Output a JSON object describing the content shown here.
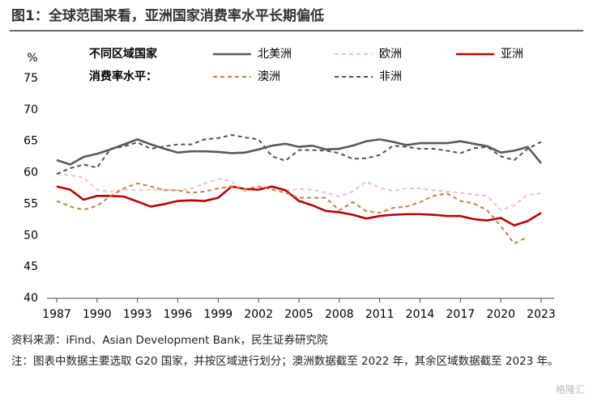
{
  "chart_data": {
    "type": "line",
    "title": "图1：全球范围来看，亚洲国家消费率水平长期偏低",
    "y_unit": "%",
    "legend_title": [
      "不同区域国家",
      "消费率水平："
    ],
    "x": [
      1987,
      1988,
      1989,
      1990,
      1991,
      1992,
      1993,
      1994,
      1995,
      1996,
      1997,
      1998,
      1999,
      2000,
      2001,
      2002,
      2003,
      2004,
      2005,
      2006,
      2007,
      2008,
      2009,
      2010,
      2011,
      2012,
      2013,
      2014,
      2015,
      2016,
      2017,
      2018,
      2019,
      2020,
      2021,
      2022,
      2023
    ],
    "xlim": [
      1987,
      2023
    ],
    "xticks": [
      1987,
      1990,
      1993,
      1996,
      1999,
      2002,
      2005,
      2008,
      2011,
      2014,
      2017,
      2020,
      2023
    ],
    "ylim": [
      40,
      75
    ],
    "yticks": [
      40,
      45,
      50,
      55,
      60,
      65,
      70,
      75
    ],
    "series": [
      {
        "name": "北美洲",
        "color": "#595959",
        "dashed": false,
        "values": [
          62,
          61.3,
          62.5,
          63,
          63.7,
          64.5,
          65.3,
          64.5,
          63.8,
          63.2,
          63.4,
          63.4,
          63.3,
          63.1,
          63.2,
          63.7,
          64.3,
          64.6,
          64.1,
          64.3,
          63.7,
          63.8,
          64.3,
          65,
          65.3,
          64.9,
          64.4,
          64.7,
          64.7,
          64.7,
          65,
          64.6,
          64.2,
          63.2,
          63.5,
          64.1,
          61.5
        ]
      },
      {
        "name": "欧洲",
        "color": "#f4c0c0",
        "dashed": true,
        "values": [
          59.8,
          59.6,
          59.2,
          57.3,
          57,
          57.3,
          57.2,
          57.3,
          57.3,
          57.2,
          57.5,
          58.3,
          59,
          58.6,
          57,
          57.8,
          57.5,
          57.2,
          57.4,
          57.3,
          56.8,
          56.2,
          57,
          58.6,
          57.6,
          57.1,
          57.5,
          57.5,
          57.2,
          57,
          56.8,
          56.5,
          56.3,
          54,
          54.8,
          56.5,
          56.7
        ]
      },
      {
        "name": "亚洲",
        "color": "#c00000",
        "dashed": false,
        "values": [
          57.8,
          57.3,
          55.7,
          56.3,
          56.3,
          56.2,
          55.4,
          54.6,
          55,
          55.5,
          55.6,
          55.5,
          56,
          57.8,
          57.4,
          57.3,
          57.8,
          57.2,
          55.5,
          54.8,
          53.9,
          53.7,
          53.3,
          52.7,
          53.1,
          53.3,
          53.4,
          53.4,
          53.3,
          53.1,
          53.1,
          52.6,
          52.4,
          52.8,
          51.6,
          52.3,
          53.6
        ]
      },
      {
        "name": "澳洲",
        "color": "#c5803f",
        "dashed": true,
        "values": [
          55.5,
          54.6,
          54.1,
          54.7,
          56.3,
          57.5,
          58.3,
          57.8,
          57.2,
          57.2,
          56.8,
          57,
          57.5,
          57.8,
          57.4,
          57.8,
          57.3,
          56.8,
          56,
          56,
          56,
          54,
          55.3,
          53.9,
          53.6,
          54.4,
          54.6,
          55.3,
          56.3,
          56.7,
          55.5,
          55.1,
          54,
          51.5,
          48.7,
          49.8,
          null
        ]
      },
      {
        "name": "非洲",
        "color": "#44546a",
        "dashed": true,
        "values": [
          59.8,
          60.7,
          61.3,
          60.8,
          63.8,
          64.2,
          64.8,
          63.8,
          64.2,
          64.5,
          64.5,
          65.3,
          65.5,
          66,
          65.6,
          65.3,
          62.6,
          61.9,
          63.6,
          63.6,
          63.5,
          63.1,
          62.2,
          62.3,
          62.8,
          64.3,
          64.1,
          63.8,
          63.8,
          63.5,
          63.1,
          63.9,
          64.1,
          62.6,
          62,
          63.8,
          64.9
        ]
      }
    ],
    "source": "资料来源：iFind、Asian Development Bank，民生证券研究院",
    "note": "注：图表中数据主要选取 G20 国家，并按区域进行划分；澳洲数据截至 2022 年，其余区域数据截至 2023 年。",
    "watermark": "格隆汇"
  }
}
